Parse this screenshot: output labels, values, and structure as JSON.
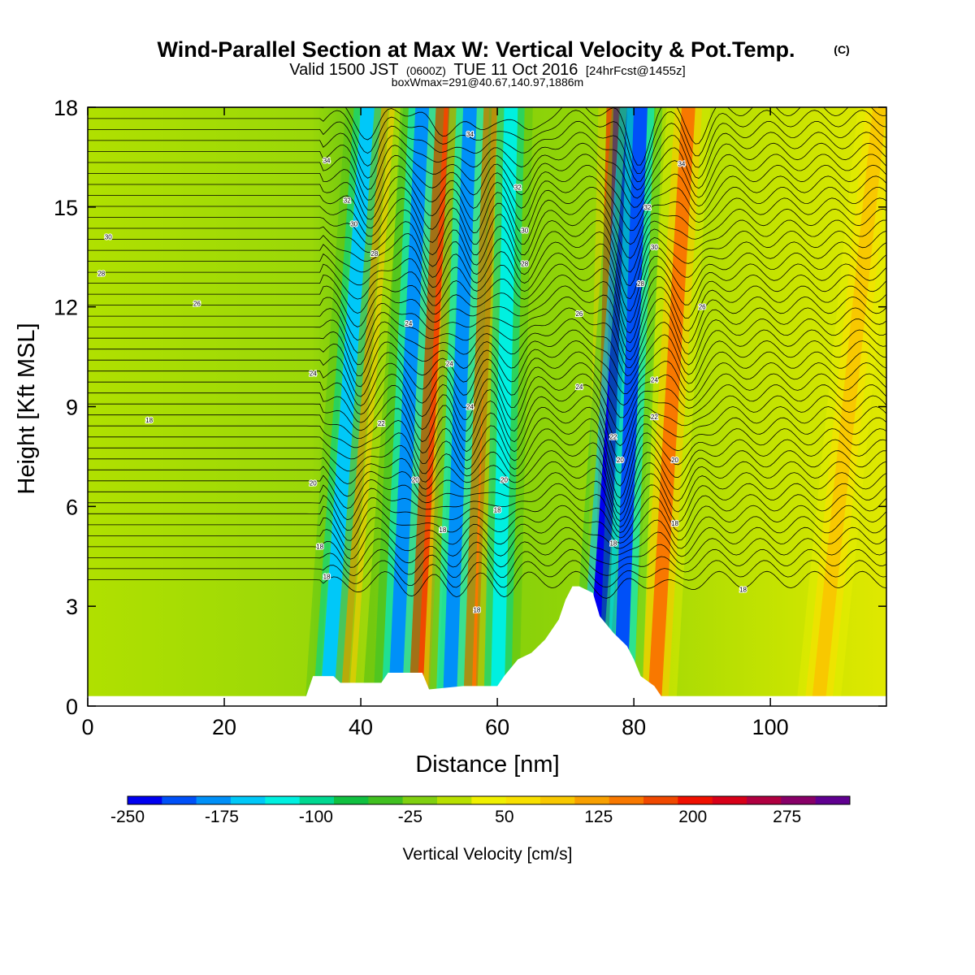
{
  "chart_data": {
    "type": "heatmap",
    "title": "Wind-Parallel Section at Max W: Vertical Velocity & Pot.Temp.",
    "title_mark": "(C)",
    "subtitle": {
      "lead": "Valid 1500 JST",
      "utc": "(0600Z)",
      "date": "TUE 11 Oct 2016",
      "forecast": "[24hrFcst@1455z]"
    },
    "box_info": "boxWmax=291@40.67,140.97,1886m",
    "xlabel": "Distance [nm]",
    "ylabel": "Height [Kft MSL]",
    "xlim": [
      0,
      117
    ],
    "ylim": [
      0,
      18
    ],
    "x_ticks": [
      "0",
      "20",
      "40",
      "60",
      "80",
      "100"
    ],
    "x_tick_values": [
      0,
      20,
      40,
      60,
      80,
      100
    ],
    "y_ticks": [
      "0",
      "3",
      "6",
      "9",
      "12",
      "15",
      "18"
    ],
    "y_tick_values": [
      0,
      3,
      6,
      9,
      12,
      15,
      18
    ],
    "colorbar": {
      "label": "Vertical Velocity [cm/s]",
      "tick_labels": [
        "-250",
        "-175",
        "-100",
        "-25",
        "50",
        "125",
        "200",
        "275"
      ],
      "tick_values": [
        -250,
        -175,
        -100,
        -25,
        50,
        125,
        200,
        275
      ],
      "min": -250,
      "max": 325,
      "colors": [
        "#0000f0",
        "#0050f8",
        "#0090f8",
        "#00c8f8",
        "#00f0e0",
        "#00d890",
        "#10c040",
        "#40c020",
        "#80d010",
        "#b8e000",
        "#f0f000",
        "#f8e000",
        "#f8c800",
        "#f8a000",
        "#f87800",
        "#f04800",
        "#f01000",
        "#d80018",
        "#b00040",
        "#880068",
        "#600090"
      ]
    },
    "updraft_bands": [
      {
        "x_bottom": 37,
        "x_top": 43,
        "w": 130
      },
      {
        "x_bottom": 48,
        "x_top": 52,
        "w": 180
      },
      {
        "x_bottom": 56,
        "x_top": 59,
        "w": 150
      },
      {
        "x_bottom": 76,
        "x_top": 78,
        "w": 291
      },
      {
        "x_bottom": 83,
        "x_top": 88,
        "w": 140
      },
      {
        "x_bottom": 107,
        "x_top": 116,
        "w": 100
      }
    ],
    "downdraft_bands": [
      {
        "x_bottom": 35,
        "x_top": 41,
        "w": -160
      },
      {
        "x_bottom": 45,
        "x_top": 49,
        "w": -175
      },
      {
        "x_bottom": 53,
        "x_top": 56,
        "w": -180
      },
      {
        "x_bottom": 60,
        "x_top": 62,
        "w": -140
      },
      {
        "x_bottom": 74,
        "x_top": 80,
        "w": -240
      },
      {
        "x_bottom": 78,
        "x_top": 81,
        "w": -200
      }
    ],
    "terrain": [
      [
        0,
        0.3
      ],
      [
        32,
        0.3
      ],
      [
        33,
        0.9
      ],
      [
        36,
        0.9
      ],
      [
        37,
        0.7
      ],
      [
        43,
        0.7
      ],
      [
        44,
        1.0
      ],
      [
        49,
        1.0
      ],
      [
        50,
        0.5
      ],
      [
        55,
        0.6
      ],
      [
        60,
        0.6
      ],
      [
        61,
        0.9
      ],
      [
        63,
        1.4
      ],
      [
        65,
        1.6
      ],
      [
        67,
        2.0
      ],
      [
        69,
        2.6
      ],
      [
        70,
        3.2
      ],
      [
        71,
        3.6
      ],
      [
        72,
        3.6
      ],
      [
        74,
        3.4
      ],
      [
        75,
        2.7
      ],
      [
        77,
        2.2
      ],
      [
        79,
        1.8
      ],
      [
        80,
        1.4
      ],
      [
        81,
        0.9
      ],
      [
        83,
        0.6
      ],
      [
        84,
        0.3
      ],
      [
        117,
        0.3
      ]
    ],
    "isentrope_labels": [
      {
        "text": "34",
        "x": 35,
        "y": 16.4
      },
      {
        "text": "34",
        "x": 56,
        "y": 17.2
      },
      {
        "text": "34",
        "x": 87,
        "y": 16.3
      },
      {
        "text": "32",
        "x": 38,
        "y": 15.2
      },
      {
        "text": "32",
        "x": 63,
        "y": 15.6
      },
      {
        "text": "32",
        "x": 82,
        "y": 15.0
      },
      {
        "text": "30",
        "x": 3,
        "y": 14.1
      },
      {
        "text": "30",
        "x": 39,
        "y": 14.5
      },
      {
        "text": "30",
        "x": 64,
        "y": 14.3
      },
      {
        "text": "30",
        "x": 83,
        "y": 13.8
      },
      {
        "text": "28",
        "x": 2,
        "y": 13.0
      },
      {
        "text": "28",
        "x": 42,
        "y": 13.6
      },
      {
        "text": "28",
        "x": 64,
        "y": 13.3
      },
      {
        "text": "28",
        "x": 81,
        "y": 12.7
      },
      {
        "text": "26",
        "x": 16,
        "y": 12.1
      },
      {
        "text": "26",
        "x": 72,
        "y": 11.8
      },
      {
        "text": "26",
        "x": 90,
        "y": 12.0
      },
      {
        "text": "24",
        "x": 47,
        "y": 11.5
      },
      {
        "text": "24",
        "x": 53,
        "y": 10.3
      },
      {
        "text": "24",
        "x": 33,
        "y": 10.0
      },
      {
        "text": "24",
        "x": 72,
        "y": 9.6
      },
      {
        "text": "24",
        "x": 83,
        "y": 9.8
      },
      {
        "text": "24",
        "x": 56,
        "y": 9.0
      },
      {
        "text": "22",
        "x": 43,
        "y": 8.5
      },
      {
        "text": "22",
        "x": 77,
        "y": 8.1
      },
      {
        "text": "22",
        "x": 83,
        "y": 8.7
      },
      {
        "text": "20",
        "x": 33,
        "y": 6.7
      },
      {
        "text": "20",
        "x": 48,
        "y": 6.8
      },
      {
        "text": "20",
        "x": 61,
        "y": 6.8
      },
      {
        "text": "20",
        "x": 78,
        "y": 7.4
      },
      {
        "text": "20",
        "x": 86,
        "y": 7.4
      },
      {
        "text": "18",
        "x": 9,
        "y": 8.6
      },
      {
        "text": "18",
        "x": 34,
        "y": 4.8
      },
      {
        "text": "18",
        "x": 35,
        "y": 3.9
      },
      {
        "text": "18",
        "x": 52,
        "y": 5.3
      },
      {
        "text": "18",
        "x": 60,
        "y": 5.9
      },
      {
        "text": "18",
        "x": 77,
        "y": 4.9
      },
      {
        "text": "18",
        "x": 86,
        "y": 5.5
      },
      {
        "text": "18",
        "x": 57,
        "y": 2.9
      },
      {
        "text": "18",
        "x": 96,
        "y": 3.5
      }
    ]
  }
}
